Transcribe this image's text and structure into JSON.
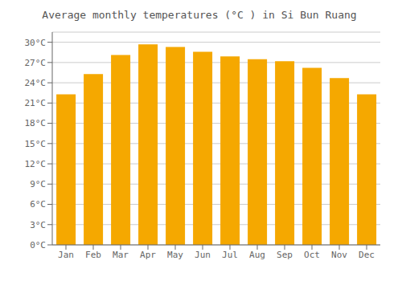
{
  "chart_data": {
    "type": "bar",
    "title": "Average monthly temperatures (°C ) in Si Bun Ruang",
    "categories": [
      "Jan",
      "Feb",
      "Mar",
      "Apr",
      "May",
      "Jun",
      "Jul",
      "Aug",
      "Sep",
      "Oct",
      "Nov",
      "Dec"
    ],
    "values": [
      22.3,
      25.3,
      28.1,
      29.7,
      29.3,
      28.6,
      27.9,
      27.5,
      27.2,
      26.2,
      24.7,
      22.3
    ],
    "color": "#F5A800",
    "ylim": [
      0,
      31.5
    ],
    "yticks": [
      {
        "value": 0,
        "label": "0°C"
      },
      {
        "value": 3,
        "label": "3°C"
      },
      {
        "value": 6,
        "label": "6°C"
      },
      {
        "value": 9,
        "label": "9°C"
      },
      {
        "value": 12,
        "label": "12°C"
      },
      {
        "value": 15,
        "label": "15°C"
      },
      {
        "value": 18,
        "label": "18°C"
      },
      {
        "value": 21,
        "label": "21°C"
      },
      {
        "value": 24,
        "label": "24°C"
      },
      {
        "value": 27,
        "label": "27°C"
      },
      {
        "value": 30,
        "label": "30°C"
      }
    ],
    "grid": true
  }
}
